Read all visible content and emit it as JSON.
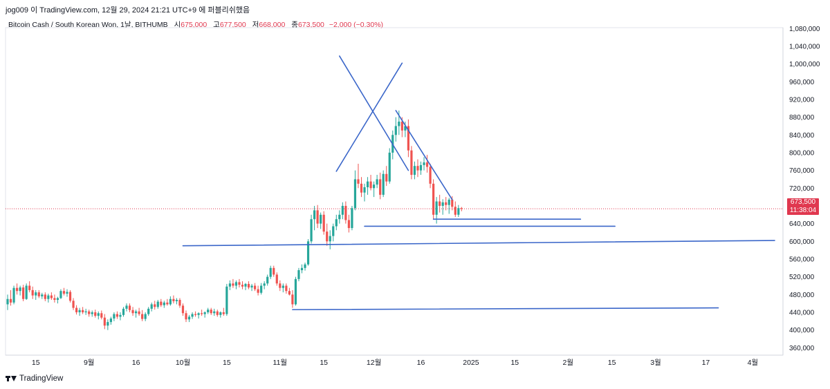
{
  "header": {
    "author_line": "jog009 이 TradingView.com, 12월 29, 2024 21:21 UTC+9 에 퍼블리쉬했음"
  },
  "legend": {
    "symbol": "Bitcoin Cash / South Korean Won, 1날, BITHUMB",
    "open_label": "시",
    "open": "675,000",
    "high_label": "고",
    "high": "677,500",
    "low_label": "저",
    "low": "668,000",
    "close_label": "종",
    "close": "673,500",
    "change": "−2,000 (−0.30%)"
  },
  "price_tag": {
    "price": "673,500",
    "countdown": "11:38:04"
  },
  "footer": {
    "brand": "TradingView"
  },
  "colors": {
    "up": "#26a69a",
    "down": "#ef5350",
    "drawing": "#3a66c9",
    "price_line": "#e0384f"
  },
  "chart_data": {
    "type": "candlestick",
    "title": "",
    "xlabel": "",
    "ylabel": "",
    "ylim": [
      320000,
      1110000
    ],
    "y_ticks": [
      360000,
      400000,
      440000,
      480000,
      520000,
      560000,
      600000,
      640000,
      680000,
      720000,
      760000,
      800000,
      840000,
      880000,
      920000,
      960000,
      1000000,
      1040000,
      1080000
    ],
    "y_tick_labels": [
      "360,000",
      "400,000",
      "440,000",
      "480,000",
      "520,000",
      "560,000",
      "600,000",
      "640,000",
      "680,000",
      "720,000",
      "760,000",
      "800,000",
      "840,000",
      "880,000",
      "920,000",
      "960,000",
      "1,000,000",
      "1,040,000",
      "1,080,000"
    ],
    "x_ticks": [
      {
        "label": "15",
        "date": "2024-08-15"
      },
      {
        "label": "9월",
        "date": "2024-09-01"
      },
      {
        "label": "16",
        "date": "2024-09-16"
      },
      {
        "label": "10월",
        "date": "2024-10-01"
      },
      {
        "label": "15",
        "date": "2024-10-15"
      },
      {
        "label": "11월",
        "date": "2024-11-01"
      },
      {
        "label": "15",
        "date": "2024-11-15"
      },
      {
        "label": "12월",
        "date": "2024-12-01"
      },
      {
        "label": "16",
        "date": "2024-12-16"
      },
      {
        "label": "2025",
        "date": "2025-01-01"
      },
      {
        "label": "15",
        "date": "2025-01-15"
      },
      {
        "label": "2월",
        "date": "2025-02-01"
      },
      {
        "label": "15",
        "date": "2025-02-15"
      },
      {
        "label": "3월",
        "date": "2025-03-01"
      },
      {
        "label": "17",
        "date": "2025-03-17"
      },
      {
        "label": "4월",
        "date": "2025-04-01"
      }
    ],
    "x_range": [
      "2024-08-06",
      "2025-04-08"
    ],
    "last_price": 673500,
    "candles": [
      [
        "2024-08-06",
        458000,
        480000,
        445000,
        470000
      ],
      [
        "2024-08-07",
        470000,
        490000,
        455000,
        462000
      ],
      [
        "2024-08-08",
        462000,
        500000,
        458000,
        495000
      ],
      [
        "2024-08-09",
        495000,
        505000,
        480000,
        488000
      ],
      [
        "2024-08-10",
        488000,
        500000,
        478000,
        496000
      ],
      [
        "2024-08-11",
        496000,
        502000,
        465000,
        470000
      ],
      [
        "2024-08-12",
        470000,
        505000,
        468000,
        500000
      ],
      [
        "2024-08-13",
        500000,
        510000,
        485000,
        490000
      ],
      [
        "2024-08-14",
        490000,
        498000,
        470000,
        478000
      ],
      [
        "2024-08-15",
        478000,
        490000,
        468000,
        485000
      ],
      [
        "2024-08-16",
        485000,
        490000,
        472000,
        476000
      ],
      [
        "2024-08-17",
        476000,
        484000,
        470000,
        480000
      ],
      [
        "2024-08-18",
        480000,
        485000,
        465000,
        470000
      ],
      [
        "2024-08-19",
        470000,
        482000,
        462000,
        478000
      ],
      [
        "2024-08-20",
        478000,
        485000,
        468000,
        472000
      ],
      [
        "2024-08-21",
        472000,
        480000,
        462000,
        468000
      ],
      [
        "2024-08-22",
        468000,
        475000,
        460000,
        472000
      ],
      [
        "2024-08-23",
        472000,
        492000,
        470000,
        488000
      ],
      [
        "2024-08-24",
        488000,
        495000,
        478000,
        482000
      ],
      [
        "2024-08-25",
        482000,
        492000,
        475000,
        486000
      ],
      [
        "2024-08-26",
        486000,
        490000,
        462000,
        466000
      ],
      [
        "2024-08-27",
        466000,
        472000,
        445000,
        450000
      ],
      [
        "2024-08-28",
        450000,
        456000,
        435000,
        440000
      ],
      [
        "2024-08-29",
        440000,
        450000,
        432000,
        445000
      ],
      [
        "2024-08-30",
        445000,
        452000,
        436000,
        440000
      ],
      [
        "2024-08-31",
        440000,
        448000,
        434000,
        442000
      ],
      [
        "2024-09-01",
        442000,
        446000,
        430000,
        436000
      ],
      [
        "2024-09-02",
        436000,
        444000,
        430000,
        440000
      ],
      [
        "2024-09-03",
        440000,
        446000,
        428000,
        432000
      ],
      [
        "2024-09-04",
        432000,
        442000,
        424000,
        438000
      ],
      [
        "2024-09-05",
        438000,
        444000,
        424000,
        428000
      ],
      [
        "2024-09-06",
        428000,
        436000,
        402000,
        410000
      ],
      [
        "2024-09-07",
        410000,
        424000,
        400000,
        418000
      ],
      [
        "2024-09-08",
        418000,
        430000,
        412000,
        426000
      ],
      [
        "2024-09-09",
        426000,
        440000,
        420000,
        436000
      ],
      [
        "2024-09-10",
        436000,
        442000,
        425000,
        430000
      ],
      [
        "2024-09-11",
        430000,
        440000,
        422000,
        434000
      ],
      [
        "2024-09-12",
        434000,
        452000,
        430000,
        448000
      ],
      [
        "2024-09-13",
        448000,
        460000,
        442000,
        455000
      ],
      [
        "2024-09-14",
        455000,
        460000,
        440000,
        445000
      ],
      [
        "2024-09-15",
        445000,
        452000,
        432000,
        438000
      ],
      [
        "2024-09-16",
        438000,
        446000,
        428000,
        442000
      ],
      [
        "2024-09-17",
        442000,
        450000,
        432000,
        436000
      ],
      [
        "2024-09-18",
        436000,
        445000,
        420000,
        425000
      ],
      [
        "2024-09-19",
        425000,
        440000,
        420000,
        436000
      ],
      [
        "2024-09-20",
        436000,
        452000,
        432000,
        448000
      ],
      [
        "2024-09-21",
        448000,
        462000,
        442000,
        458000
      ],
      [
        "2024-09-22",
        458000,
        466000,
        446000,
        452000
      ],
      [
        "2024-09-23",
        452000,
        468000,
        448000,
        464000
      ],
      [
        "2024-09-24",
        464000,
        470000,
        452000,
        456000
      ],
      [
        "2024-09-25",
        456000,
        466000,
        450000,
        462000
      ],
      [
        "2024-09-26",
        462000,
        470000,
        455000,
        458000
      ],
      [
        "2024-09-27",
        458000,
        476000,
        455000,
        470000
      ],
      [
        "2024-09-28",
        470000,
        478000,
        460000,
        465000
      ],
      [
        "2024-09-29",
        465000,
        472000,
        458000,
        468000
      ],
      [
        "2024-09-30",
        468000,
        472000,
        450000,
        455000
      ],
      [
        "2024-10-01",
        455000,
        460000,
        432000,
        438000
      ],
      [
        "2024-10-02",
        438000,
        444000,
        418000,
        424000
      ],
      [
        "2024-10-03",
        424000,
        434000,
        418000,
        430000
      ],
      [
        "2024-10-04",
        430000,
        440000,
        425000,
        436000
      ],
      [
        "2024-10-05",
        436000,
        442000,
        430000,
        434000
      ],
      [
        "2024-10-06",
        434000,
        440000,
        426000,
        438000
      ],
      [
        "2024-10-07",
        438000,
        446000,
        432000,
        436000
      ],
      [
        "2024-10-08",
        436000,
        442000,
        428000,
        440000
      ],
      [
        "2024-10-09",
        440000,
        450000,
        436000,
        446000
      ],
      [
        "2024-10-10",
        446000,
        450000,
        434000,
        438000
      ],
      [
        "2024-10-11",
        438000,
        448000,
        432000,
        442000
      ],
      [
        "2024-10-12",
        442000,
        446000,
        430000,
        434000
      ],
      [
        "2024-10-13",
        434000,
        442000,
        428000,
        440000
      ],
      [
        "2024-10-14",
        440000,
        450000,
        432000,
        436000
      ],
      [
        "2024-10-15",
        436000,
        504000,
        432000,
        498000
      ],
      [
        "2024-10-16",
        498000,
        512000,
        490000,
        505000
      ],
      [
        "2024-10-17",
        505000,
        515000,
        495000,
        500000
      ],
      [
        "2024-10-18",
        500000,
        512000,
        492000,
        508000
      ],
      [
        "2024-10-19",
        508000,
        515000,
        496000,
        502000
      ],
      [
        "2024-10-20",
        502000,
        510000,
        492000,
        498000
      ],
      [
        "2024-10-21",
        498000,
        506000,
        490000,
        504000
      ],
      [
        "2024-10-22",
        504000,
        510000,
        492000,
        496000
      ],
      [
        "2024-10-23",
        496000,
        504000,
        488000,
        500000
      ],
      [
        "2024-10-24",
        500000,
        506000,
        488000,
        492000
      ],
      [
        "2024-10-25",
        492000,
        500000,
        478000,
        484000
      ],
      [
        "2024-10-26",
        484000,
        506000,
        480000,
        500000
      ],
      [
        "2024-10-27",
        500000,
        510000,
        492000,
        505000
      ],
      [
        "2024-10-28",
        505000,
        525000,
        500000,
        520000
      ],
      [
        "2024-10-29",
        520000,
        545000,
        515000,
        540000
      ],
      [
        "2024-10-30",
        540000,
        545000,
        520000,
        525000
      ],
      [
        "2024-10-31",
        525000,
        530000,
        500000,
        505000
      ],
      [
        "2024-11-01",
        505000,
        512000,
        488000,
        495000
      ],
      [
        "2024-11-02",
        495000,
        505000,
        485000,
        500000
      ],
      [
        "2024-11-03",
        500000,
        505000,
        482000,
        488000
      ],
      [
        "2024-11-04",
        488000,
        495000,
        478000,
        480000
      ],
      [
        "2024-11-05",
        480000,
        490000,
        450000,
        458000
      ],
      [
        "2024-11-06",
        458000,
        520000,
        455000,
        515000
      ],
      [
        "2024-11-07",
        515000,
        540000,
        510000,
        535000
      ],
      [
        "2024-11-08",
        535000,
        548000,
        528000,
        540000
      ],
      [
        "2024-11-09",
        540000,
        552000,
        534000,
        548000
      ],
      [
        "2024-11-10",
        548000,
        605000,
        545000,
        600000
      ],
      [
        "2024-11-11",
        600000,
        660000,
        595000,
        650000
      ],
      [
        "2024-11-12",
        650000,
        680000,
        625000,
        670000
      ],
      [
        "2024-11-13",
        670000,
        682000,
        630000,
        640000
      ],
      [
        "2024-11-14",
        640000,
        665000,
        628000,
        660000
      ],
      [
        "2024-11-15",
        660000,
        668000,
        615000,
        622000
      ],
      [
        "2024-11-16",
        622000,
        640000,
        590000,
        600000
      ],
      [
        "2024-11-17",
        600000,
        625000,
        582000,
        612000
      ],
      [
        "2024-11-18",
        612000,
        640000,
        600000,
        634000
      ],
      [
        "2024-11-19",
        634000,
        660000,
        625000,
        650000
      ],
      [
        "2024-11-20",
        650000,
        670000,
        640000,
        660000
      ],
      [
        "2024-11-21",
        660000,
        688000,
        650000,
        680000
      ],
      [
        "2024-11-22",
        680000,
        690000,
        640000,
        648000
      ],
      [
        "2024-11-23",
        648000,
        660000,
        620000,
        630000
      ],
      [
        "2024-11-24",
        630000,
        680000,
        625000,
        675000
      ],
      [
        "2024-11-25",
        675000,
        760000,
        670000,
        740000
      ],
      [
        "2024-11-26",
        740000,
        775000,
        720000,
        730000
      ],
      [
        "2024-11-27",
        730000,
        745000,
        700000,
        710000
      ],
      [
        "2024-11-28",
        710000,
        730000,
        690000,
        722000
      ],
      [
        "2024-11-29",
        722000,
        745000,
        705000,
        735000
      ],
      [
        "2024-11-30",
        735000,
        750000,
        715000,
        720000
      ],
      [
        "2024-12-01",
        720000,
        735000,
        700000,
        728000
      ],
      [
        "2024-12-02",
        728000,
        750000,
        720000,
        740000
      ],
      [
        "2024-12-03",
        740000,
        755000,
        695000,
        705000
      ],
      [
        "2024-12-04",
        705000,
        760000,
        700000,
        752000
      ],
      [
        "2024-12-05",
        752000,
        770000,
        725000,
        735000
      ],
      [
        "2024-12-06",
        735000,
        810000,
        730000,
        800000
      ],
      [
        "2024-12-07",
        800000,
        850000,
        785000,
        840000
      ],
      [
        "2024-12-08",
        840000,
        880000,
        825000,
        860000
      ],
      [
        "2024-12-09",
        860000,
        895000,
        840000,
        870000
      ],
      [
        "2024-12-10",
        870000,
        880000,
        835000,
        850000
      ],
      [
        "2024-12-11",
        850000,
        870000,
        835000,
        860000
      ],
      [
        "2024-12-12",
        860000,
        875000,
        790000,
        805000
      ],
      [
        "2024-12-13",
        805000,
        815000,
        740000,
        750000
      ],
      [
        "2024-12-14",
        750000,
        780000,
        740000,
        770000
      ],
      [
        "2024-12-15",
        770000,
        785000,
        745000,
        760000
      ],
      [
        "2024-12-16",
        760000,
        780000,
        750000,
        772000
      ],
      [
        "2024-12-17",
        772000,
        790000,
        760000,
        778000
      ],
      [
        "2024-12-18",
        778000,
        795000,
        755000,
        768000
      ],
      [
        "2024-12-19",
        768000,
        775000,
        720000,
        730000
      ],
      [
        "2024-12-20",
        730000,
        740000,
        650000,
        660000
      ],
      [
        "2024-12-21",
        660000,
        700000,
        640000,
        690000
      ],
      [
        "2024-12-22",
        690000,
        705000,
        665000,
        680000
      ],
      [
        "2024-12-23",
        680000,
        695000,
        660000,
        688000
      ],
      [
        "2024-12-24",
        688000,
        700000,
        670000,
        682000
      ],
      [
        "2024-12-25",
        682000,
        698000,
        662000,
        694000
      ],
      [
        "2024-12-26",
        694000,
        702000,
        670000,
        678000
      ],
      [
        "2024-12-27",
        678000,
        690000,
        655000,
        660000
      ],
      [
        "2024-12-28",
        660000,
        682000,
        655000,
        675000
      ],
      [
        "2024-12-29",
        675000,
        677500,
        668000,
        673500
      ]
    ],
    "drawings": [
      {
        "name": "cross-line-1",
        "from": [
          "2024-11-20",
          1018000
        ],
        "to": [
          "2024-12-12",
          760000
        ]
      },
      {
        "name": "cross-line-2",
        "from": [
          "2024-11-19",
          758000
        ],
        "to": [
          "2024-12-10",
          1002000
        ]
      },
      {
        "name": "triangle-upper",
        "from": [
          "2024-12-08",
          895000
        ],
        "to": [
          "2024-12-26",
          694000
        ]
      },
      {
        "name": "support-short",
        "from": [
          "2024-12-20",
          650000
        ],
        "to": [
          "2025-02-05",
          650000
        ]
      },
      {
        "name": "support-mid",
        "from": [
          "2024-11-28",
          634000
        ],
        "to": [
          "2025-02-16",
          634000
        ]
      },
      {
        "name": "support-long",
        "from": [
          "2024-10-01",
          590000
        ],
        "to": [
          "2025-04-08",
          602000
        ]
      },
      {
        "name": "support-low",
        "from": [
          "2024-11-05",
          446000
        ],
        "to": [
          "2025-03-21",
          450000
        ]
      }
    ]
  }
}
